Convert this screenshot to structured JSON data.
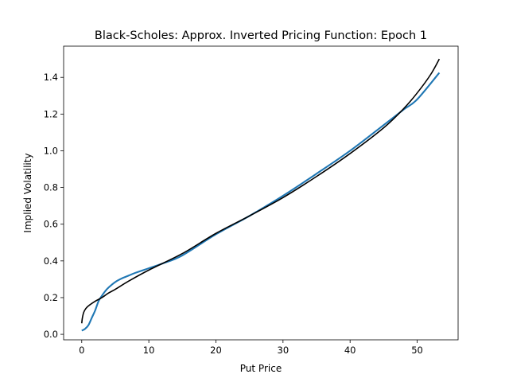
{
  "chart_data": {
    "type": "line",
    "title": "Black-Scholes: Approx. Inverted Pricing Function: Epoch 1",
    "xlabel": "Put Price",
    "ylabel": "Implied Volatility",
    "xlim": [
      -2.7,
      56.1
    ],
    "ylim": [
      -0.03,
      1.57
    ],
    "xticks": [
      0,
      10,
      20,
      30,
      40,
      50
    ],
    "yticks": [
      0.0,
      0.2,
      0.4,
      0.6,
      0.8,
      1.0,
      1.2,
      1.4
    ],
    "xtick_labels": [
      "0",
      "10",
      "20",
      "30",
      "40",
      "50"
    ],
    "ytick_labels": [
      "0.0",
      "0.2",
      "0.4",
      "0.6",
      "0.8",
      "1.0",
      "1.2",
      "1.4"
    ],
    "grid": false,
    "series": [
      {
        "color": "#1f77b4",
        "x": [
          0,
          0.5,
          1,
          1.5,
          2,
          2.5,
          3,
          3.5,
          4,
          5,
          6,
          7,
          8,
          10,
          12,
          15,
          20,
          25,
          30,
          35,
          40,
          45,
          48,
          50,
          53.3
        ],
        "y": [
          0.02,
          0.03,
          0.05,
          0.09,
          0.13,
          0.18,
          0.21,
          0.235,
          0.255,
          0.285,
          0.305,
          0.32,
          0.335,
          0.36,
          0.385,
          0.43,
          0.545,
          0.645,
          0.755,
          0.875,
          1.0,
          1.14,
          1.225,
          1.28,
          1.425
        ]
      },
      {
        "color": "#000000",
        "x": [
          0,
          0.1,
          0.3,
          0.6,
          1,
          2,
          3,
          4,
          5,
          7,
          10,
          15,
          20,
          25,
          30,
          35,
          40,
          45,
          48,
          50,
          52,
          53.3
        ],
        "y": [
          0.06,
          0.09,
          0.12,
          0.14,
          0.155,
          0.18,
          0.2,
          0.225,
          0.245,
          0.29,
          0.35,
          0.44,
          0.55,
          0.645,
          0.745,
          0.86,
          0.985,
          1.125,
          1.23,
          1.315,
          1.415,
          1.5
        ]
      }
    ]
  }
}
